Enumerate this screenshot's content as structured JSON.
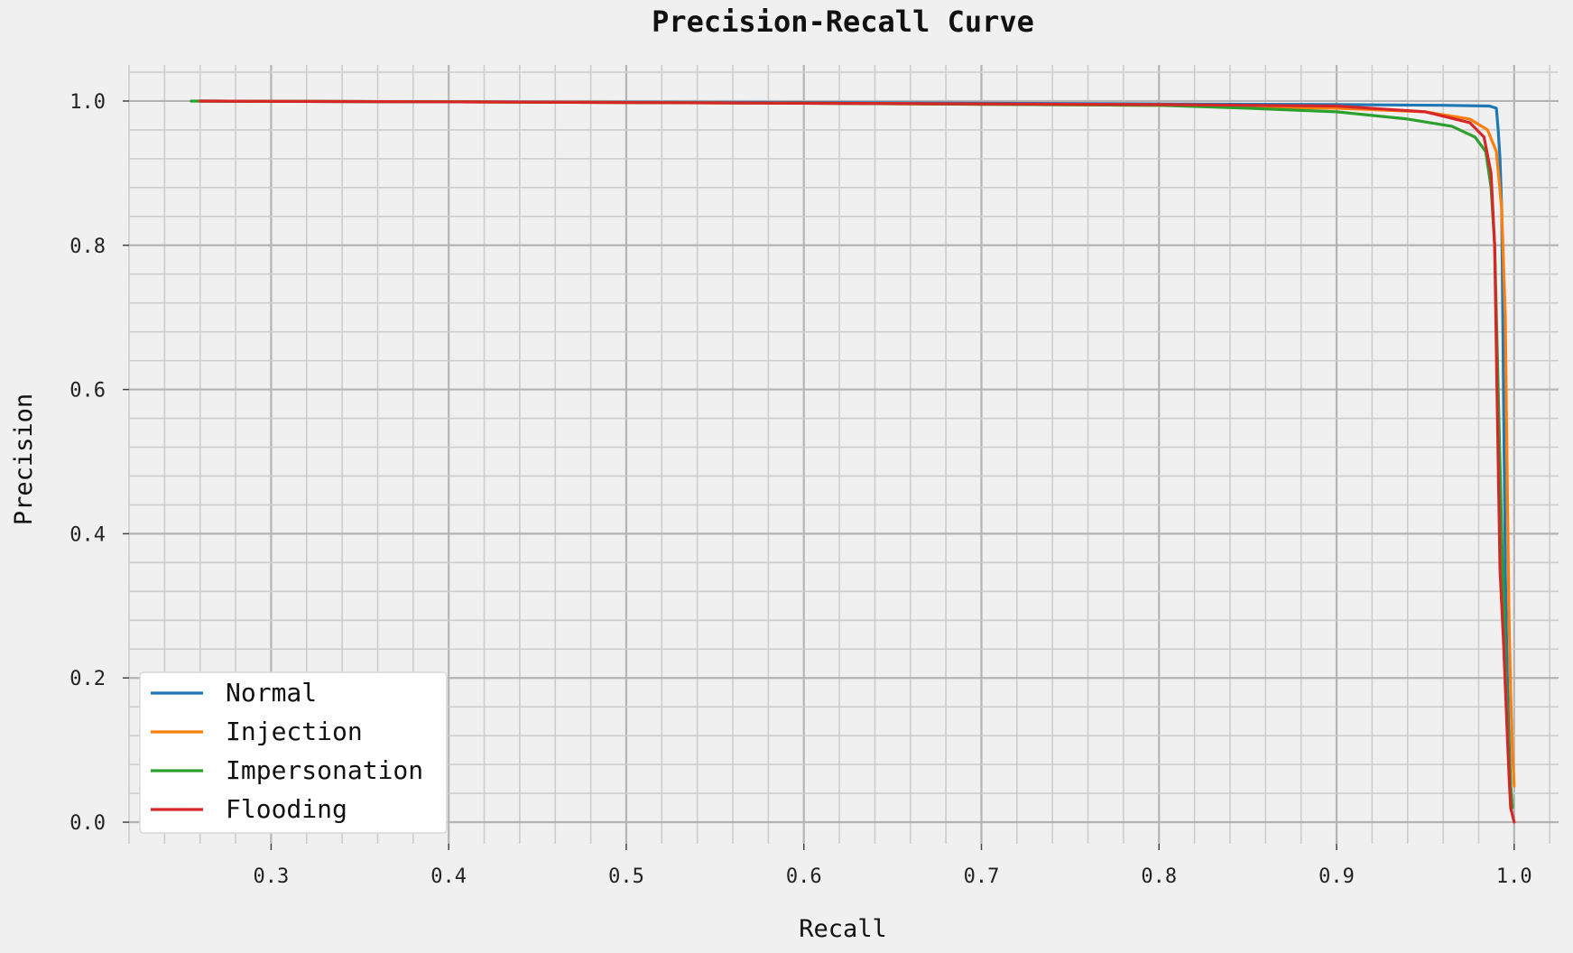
{
  "chart_data": {
    "type": "line",
    "title": "Precision-Recall Curve",
    "xlabel": "Recall",
    "ylabel": "Precision",
    "xlim": [
      0.22,
      1.025
    ],
    "ylim": [
      -0.03,
      1.05
    ],
    "grid": true,
    "legend_position": "lower-left",
    "x_ticks": [
      "0.3",
      "0.4",
      "0.5",
      "0.6",
      "0.7",
      "0.8",
      "0.9",
      "1.0"
    ],
    "y_ticks": [
      "0.0",
      "0.2",
      "0.4",
      "0.6",
      "0.8",
      "1.0"
    ],
    "series": [
      {
        "name": "Normal",
        "color": "#1f77b4",
        "points": [
          [
            0.26,
            1.0
          ],
          [
            0.4,
            0.999
          ],
          [
            0.6,
            0.998
          ],
          [
            0.8,
            0.996
          ],
          [
            0.9,
            0.995
          ],
          [
            0.96,
            0.994
          ],
          [
            0.986,
            0.993
          ],
          [
            0.99,
            0.99
          ],
          [
            0.991,
            0.96
          ],
          [
            0.992,
            0.92
          ],
          [
            0.993,
            0.85
          ],
          [
            0.994,
            0.6
          ],
          [
            0.995,
            0.35
          ],
          [
            0.996,
            0.22
          ],
          [
            0.997,
            0.12
          ],
          [
            0.998,
            0.05
          ],
          [
            0.999,
            0.02
          ]
        ]
      },
      {
        "name": "Injection",
        "color": "#ff7f0e",
        "points": [
          [
            0.26,
            1.0
          ],
          [
            0.4,
            0.999
          ],
          [
            0.6,
            0.997
          ],
          [
            0.8,
            0.994
          ],
          [
            0.9,
            0.99
          ],
          [
            0.95,
            0.985
          ],
          [
            0.975,
            0.975
          ],
          [
            0.985,
            0.96
          ],
          [
            0.99,
            0.93
          ],
          [
            0.993,
            0.85
          ],
          [
            0.995,
            0.7
          ],
          [
            0.996,
            0.5
          ],
          [
            0.997,
            0.3
          ],
          [
            0.998,
            0.18
          ],
          [
            0.999,
            0.1
          ],
          [
            1.0,
            0.05
          ]
        ]
      },
      {
        "name": "Impersonation",
        "color": "#2ca02c",
        "points": [
          [
            0.255,
            1.0
          ],
          [
            0.4,
            0.999
          ],
          [
            0.6,
            0.997
          ],
          [
            0.8,
            0.994
          ],
          [
            0.85,
            0.99
          ],
          [
            0.9,
            0.985
          ],
          [
            0.94,
            0.975
          ],
          [
            0.965,
            0.965
          ],
          [
            0.978,
            0.95
          ],
          [
            0.984,
            0.93
          ],
          [
            0.987,
            0.88
          ],
          [
            0.989,
            0.8
          ],
          [
            0.991,
            0.6
          ],
          [
            0.993,
            0.4
          ],
          [
            0.995,
            0.22
          ],
          [
            0.997,
            0.1
          ],
          [
            0.998,
            0.05
          ],
          [
            0.999,
            0.02
          ]
        ]
      },
      {
        "name": "Flooding",
        "color": "#d62728",
        "points": [
          [
            0.26,
            1.0
          ],
          [
            0.4,
            0.999
          ],
          [
            0.6,
            0.997
          ],
          [
            0.8,
            0.995
          ],
          [
            0.9,
            0.993
          ],
          [
            0.95,
            0.985
          ],
          [
            0.975,
            0.97
          ],
          [
            0.983,
            0.95
          ],
          [
            0.987,
            0.9
          ],
          [
            0.989,
            0.8
          ],
          [
            0.99,
            0.65
          ],
          [
            0.991,
            0.5
          ],
          [
            0.992,
            0.35
          ],
          [
            0.994,
            0.25
          ],
          [
            0.996,
            0.13
          ],
          [
            0.997,
            0.07
          ],
          [
            0.998,
            0.02
          ],
          [
            1.0,
            0.0
          ]
        ]
      }
    ]
  }
}
